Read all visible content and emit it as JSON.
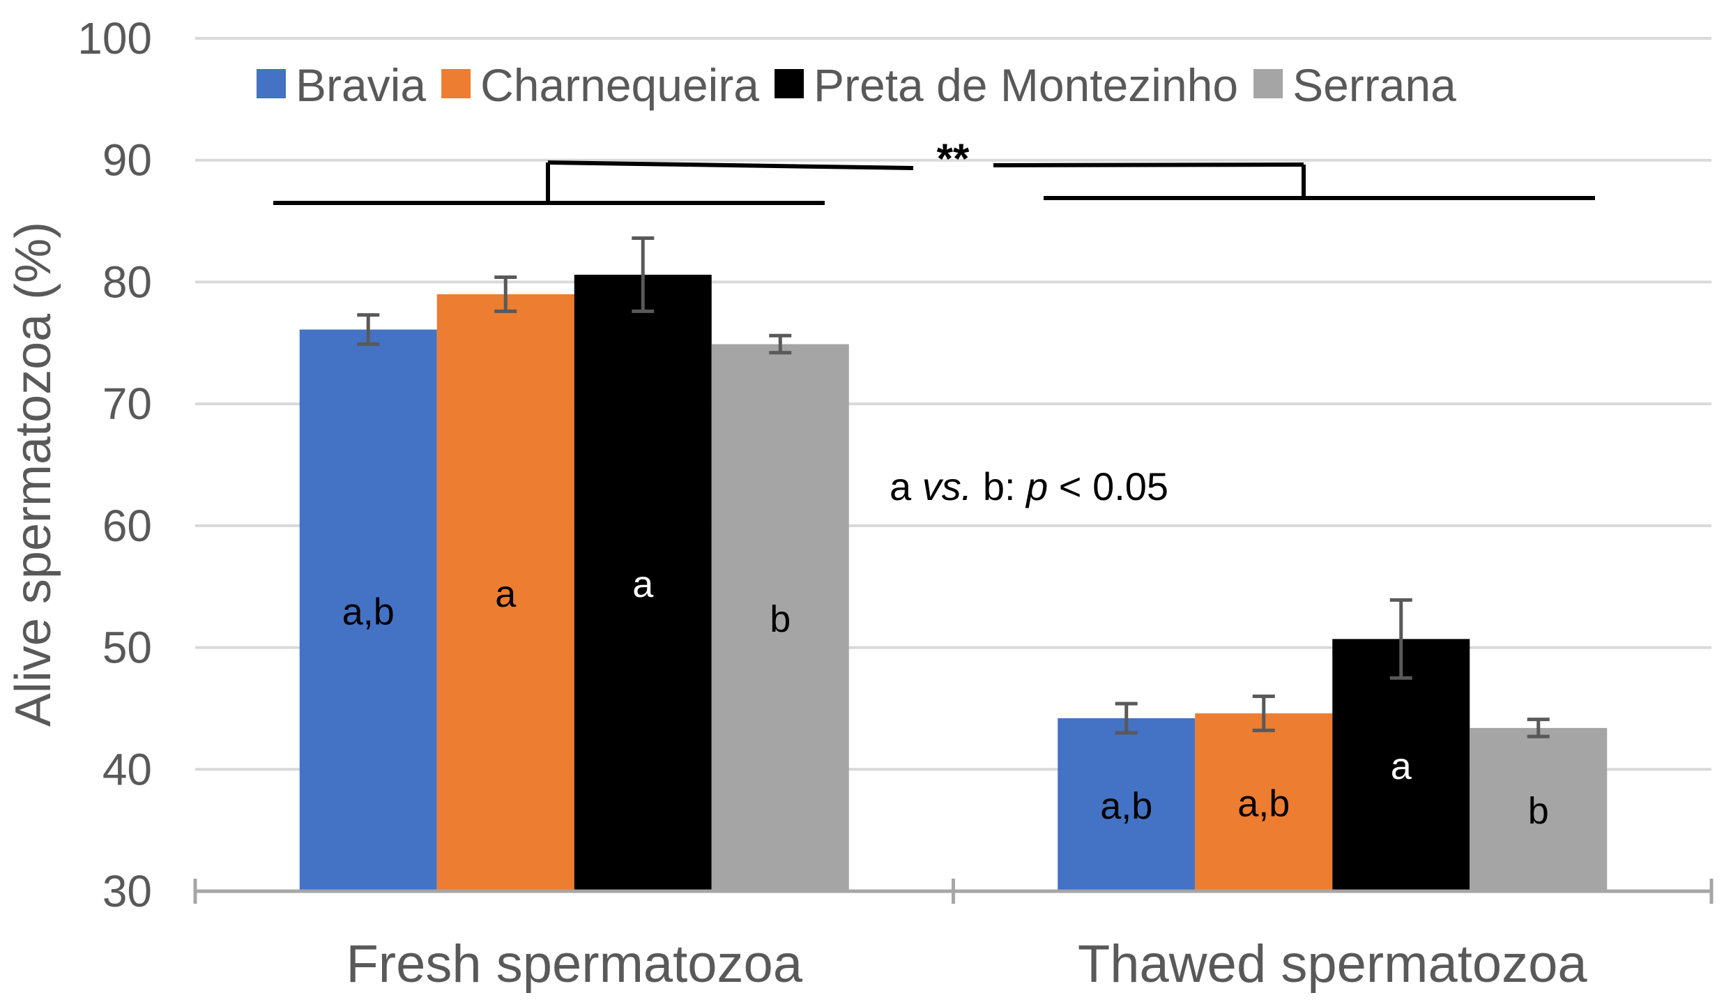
{
  "chart_data": {
    "type": "bar",
    "categories": [
      "Fresh spermatozoa",
      "Thawed spermatozoa"
    ],
    "series": [
      {
        "name": "Bravia",
        "color": "#4472C4",
        "values": [
          76.1,
          44.2
        ],
        "errors": [
          1.2,
          1.2
        ],
        "labels": [
          "a,b",
          "a,b"
        ],
        "label_color": "#000000"
      },
      {
        "name": "Charnequeira",
        "color": "#ED7D31",
        "values": [
          79.0,
          44.6
        ],
        "errors": [
          1.4,
          1.4
        ],
        "labels": [
          "a",
          "a,b"
        ],
        "label_color": "#000000"
      },
      {
        "name": "Preta de Montezinho",
        "color": "#000000",
        "values": [
          80.6,
          50.7
        ],
        "errors": [
          3.0,
          3.2
        ],
        "labels": [
          "a",
          "a"
        ],
        "label_color": "#FFFFFF"
      },
      {
        "name": "Serrana",
        "color": "#A5A5A5",
        "values": [
          74.9,
          43.4
        ],
        "errors": [
          0.7,
          0.7
        ],
        "labels": [
          "b",
          "b"
        ],
        "label_color": "#000000"
      }
    ],
    "ylim": [
      30,
      100
    ],
    "yticks": [
      30,
      40,
      50,
      60,
      70,
      80,
      90,
      100
    ],
    "ylabel": "Alive spermatozoa (%)",
    "xlabel": "",
    "legend_position": "top-center",
    "grid": true,
    "annotations": {
      "significance_stars": "**",
      "note_prefix": "a ",
      "note_italic1": "vs.",
      "note_middle": " b: ",
      "note_italic2": "p",
      "note_suffix": " < 0.05"
    }
  }
}
